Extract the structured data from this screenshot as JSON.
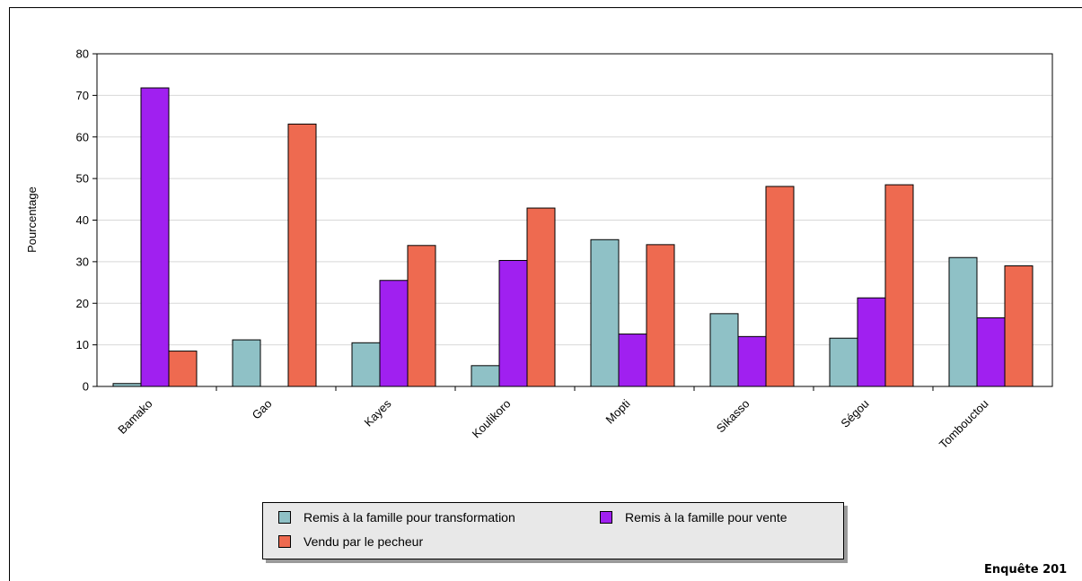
{
  "chart_data": {
    "type": "bar",
    "ylabel": "Pourcentage",
    "ylim": [
      0,
      80
    ],
    "yticks": [
      0,
      10,
      20,
      30,
      40,
      50,
      60,
      70,
      80
    ],
    "grid": true,
    "legend_position": "bottom",
    "categories": [
      "Bamako",
      "Gao",
      "Kayes",
      "Koulikoro",
      "Mopti",
      "Sikasso",
      "Ségou",
      "Tombouctou"
    ],
    "series": [
      {
        "name": "Remis à la famille pour transformation",
        "color": "#8fc1c6",
        "values": [
          0.7,
          11.2,
          10.5,
          5.0,
          35.3,
          17.5,
          11.6,
          31.0
        ]
      },
      {
        "name": "Remis à la famille pour vente",
        "color": "#a020f0",
        "values": [
          71.8,
          0,
          25.5,
          30.3,
          12.6,
          12.0,
          21.3,
          16.5
        ]
      },
      {
        "name": "Vendu par le pecheur",
        "color": "#ee6a50",
        "values": [
          8.5,
          63.1,
          33.9,
          42.9,
          34.1,
          48.1,
          48.5,
          29.0
        ]
      }
    ]
  },
  "footer": {
    "note": "Enquête 201"
  }
}
